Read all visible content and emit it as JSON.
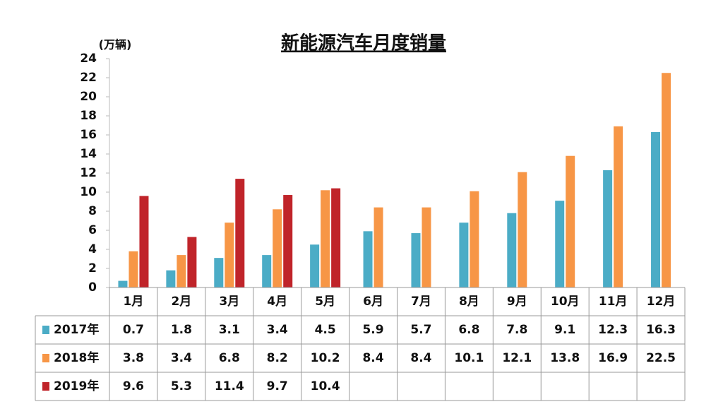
{
  "chart_data": {
    "type": "bar",
    "title": "新能源汽车月度销量",
    "y_label": "(万辆)",
    "categories": [
      "1月",
      "2月",
      "3月",
      "4月",
      "5月",
      "6月",
      "7月",
      "8月",
      "9月",
      "10月",
      "11月",
      "12月"
    ],
    "series": [
      {
        "name": "2017年",
        "color": "#4bacc6",
        "values": [
          0.7,
          1.8,
          3.1,
          3.4,
          4.5,
          5.9,
          5.7,
          6.8,
          7.8,
          9.1,
          12.3,
          16.3
        ]
      },
      {
        "name": "2018年",
        "color": "#f79646",
        "values": [
          3.8,
          3.4,
          6.8,
          8.2,
          10.2,
          8.4,
          8.4,
          10.1,
          12.1,
          13.8,
          16.9,
          22.5
        ]
      },
      {
        "name": "2019年",
        "color": "#c0242a",
        "values": [
          9.6,
          5.3,
          11.4,
          9.7,
          10.4,
          null,
          null,
          null,
          null,
          null,
          null,
          null
        ]
      }
    ],
    "ylim": [
      0,
      24
    ],
    "yticks": [
      0,
      2,
      4,
      6,
      8,
      10,
      12,
      14,
      16,
      18,
      20,
      22,
      24
    ],
    "grid": false
  }
}
